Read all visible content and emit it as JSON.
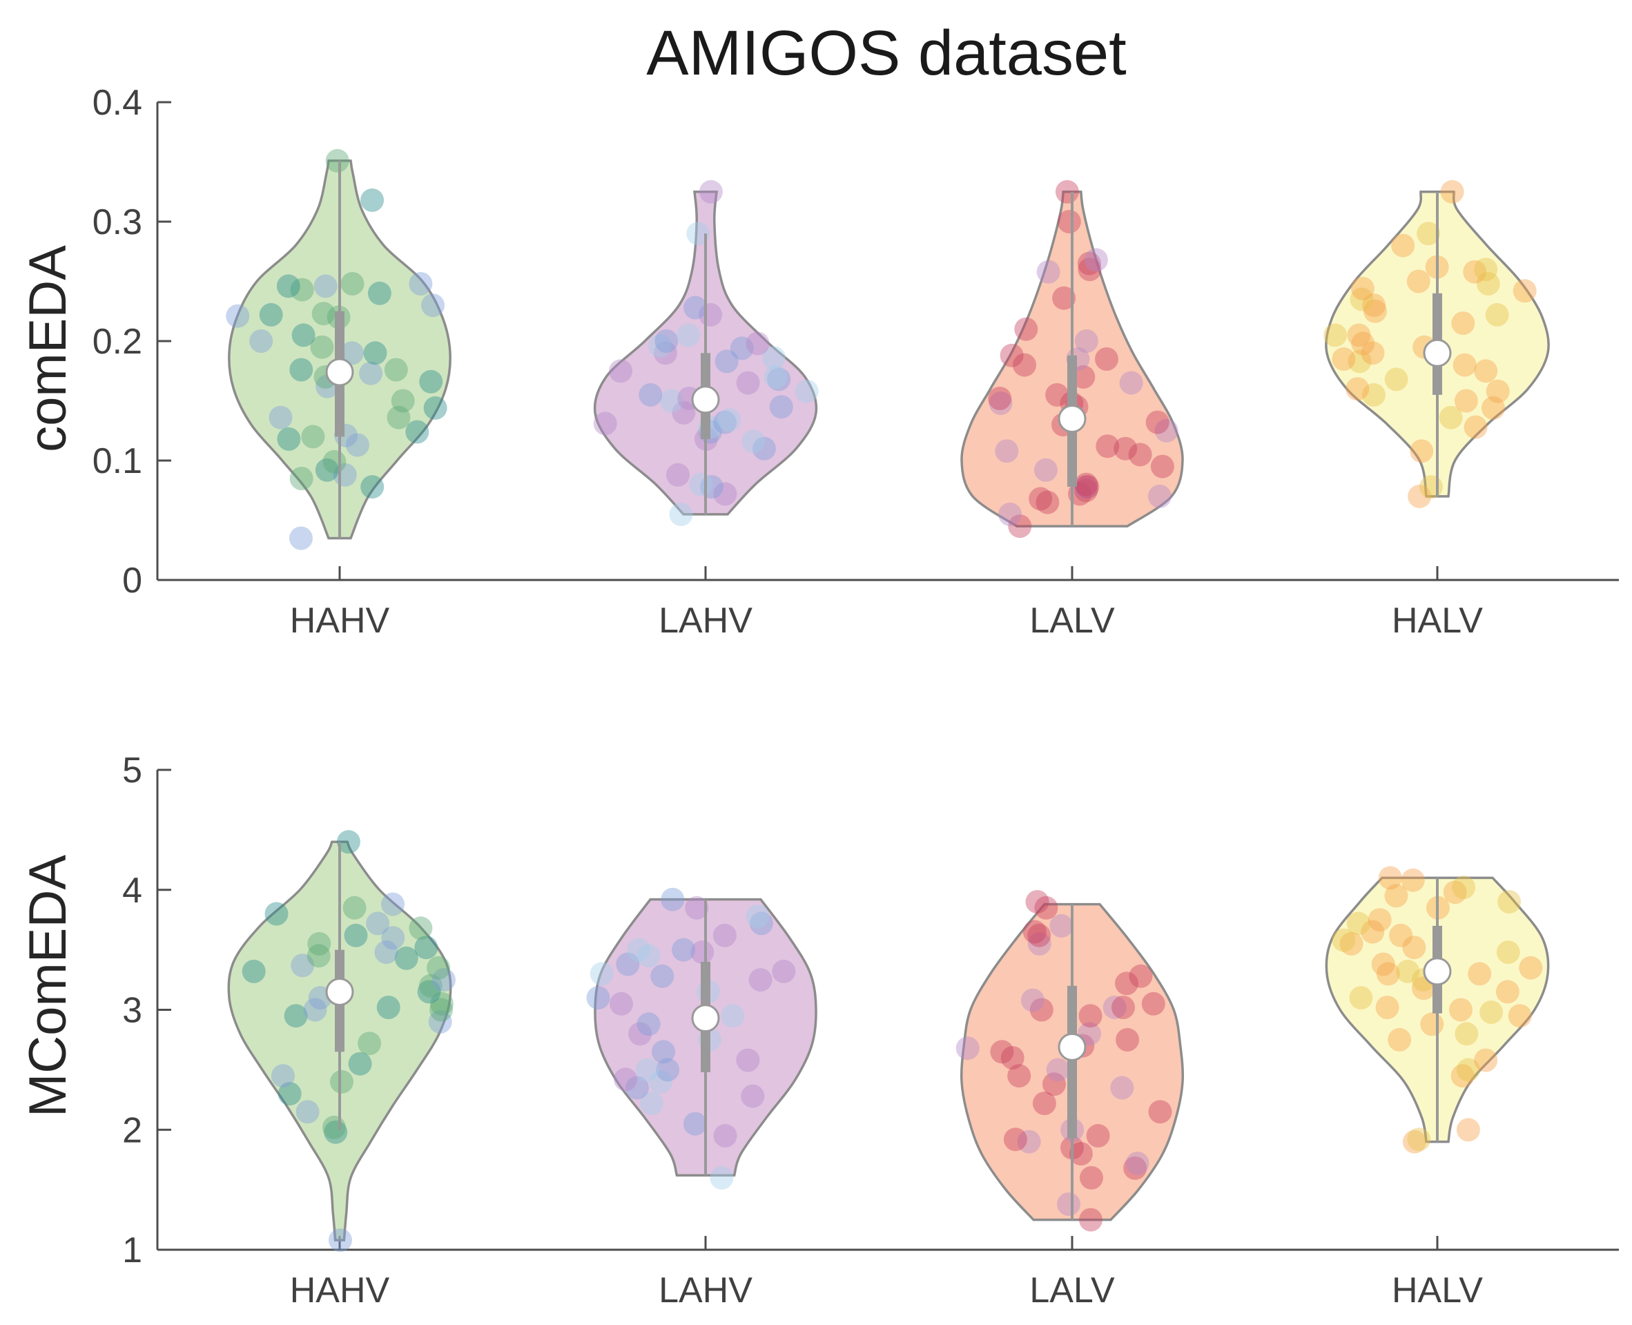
{
  "figure": {
    "title": "AMIGOS dataset"
  },
  "chart_data": [
    {
      "type": "violin",
      "ylabel": "comEDA",
      "xlabel": "",
      "categories": [
        "HAHV",
        "LAHV",
        "LALV",
        "HALV"
      ],
      "ylim": [
        0,
        0.4
      ],
      "yticks": [
        0,
        0.1,
        0.2,
        0.3,
        0.4
      ],
      "ytick_labels": [
        "0",
        "0.1",
        "0.2",
        "0.3",
        "0.4"
      ],
      "grid": false,
      "series": [
        {
          "category": "HAHV",
          "fill": "#a8d08d",
          "points": [
            0.035,
            0.078,
            0.085,
            0.088,
            0.092,
            0.099,
            0.113,
            0.118,
            0.12,
            0.121,
            0.124,
            0.136,
            0.136,
            0.144,
            0.15,
            0.162,
            0.166,
            0.17,
            0.173,
            0.176,
            0.176,
            0.19,
            0.19,
            0.195,
            0.2,
            0.205,
            0.22,
            0.221,
            0.222,
            0.223,
            0.23,
            0.24,
            0.243,
            0.246,
            0.246,
            0.248,
            0.248,
            0.318,
            0.351
          ],
          "median": 0.174,
          "q1": 0.12,
          "q3": 0.225,
          "whisker_low": 0.035,
          "whisker_high": 0.351,
          "density": [
            [
              0.035,
              0.1
            ],
            [
              0.07,
              0.26
            ],
            [
              0.1,
              0.52
            ],
            [
              0.13,
              0.8
            ],
            [
              0.16,
              0.96
            ],
            [
              0.19,
              1.0
            ],
            [
              0.22,
              0.93
            ],
            [
              0.25,
              0.75
            ],
            [
              0.28,
              0.4
            ],
            [
              0.31,
              0.2
            ],
            [
              0.34,
              0.12
            ],
            [
              0.351,
              0.1
            ]
          ]
        },
        {
          "category": "LAHV",
          "fill": "#c894c6",
          "points": [
            0.055,
            0.072,
            0.078,
            0.08,
            0.088,
            0.11,
            0.116,
            0.118,
            0.124,
            0.128,
            0.131,
            0.132,
            0.134,
            0.14,
            0.145,
            0.15,
            0.152,
            0.155,
            0.158,
            0.165,
            0.168,
            0.17,
            0.175,
            0.183,
            0.186,
            0.19,
            0.194,
            0.196,
            0.198,
            0.2,
            0.205,
            0.222,
            0.228,
            0.29,
            0.325
          ],
          "median": 0.151,
          "q1": 0.118,
          "q3": 0.19,
          "whisker_low": 0.055,
          "whisker_high": 0.29,
          "density": [
            [
              0.055,
              0.2
            ],
            [
              0.08,
              0.45
            ],
            [
              0.11,
              0.82
            ],
            [
              0.14,
              1.0
            ],
            [
              0.17,
              0.9
            ],
            [
              0.2,
              0.55
            ],
            [
              0.23,
              0.24
            ],
            [
              0.26,
              0.12
            ],
            [
              0.3,
              0.08
            ],
            [
              0.325,
              0.1
            ]
          ]
        },
        {
          "category": "LALV",
          "fill": "#f79b74",
          "points": [
            0.045,
            0.055,
            0.065,
            0.068,
            0.07,
            0.072,
            0.075,
            0.078,
            0.078,
            0.08,
            0.092,
            0.095,
            0.105,
            0.108,
            0.11,
            0.112,
            0.125,
            0.13,
            0.132,
            0.135,
            0.145,
            0.148,
            0.148,
            0.152,
            0.155,
            0.165,
            0.17,
            0.18,
            0.185,
            0.185,
            0.188,
            0.2,
            0.21,
            0.236,
            0.258,
            0.26,
            0.265,
            0.268,
            0.3,
            0.325
          ],
          "median": 0.135,
          "q1": 0.078,
          "q3": 0.188,
          "whisker_low": 0.045,
          "whisker_high": 0.325,
          "density": [
            [
              0.045,
              0.5
            ],
            [
              0.07,
              0.9
            ],
            [
              0.1,
              1.0
            ],
            [
              0.13,
              0.92
            ],
            [
              0.16,
              0.74
            ],
            [
              0.19,
              0.55
            ],
            [
              0.22,
              0.4
            ],
            [
              0.25,
              0.28
            ],
            [
              0.28,
              0.18
            ],
            [
              0.31,
              0.1
            ],
            [
              0.325,
              0.08
            ]
          ]
        },
        {
          "category": "HALV",
          "fill": "#f7f29b",
          "points": [
            0.07,
            0.078,
            0.108,
            0.128,
            0.136,
            0.144,
            0.15,
            0.155,
            0.158,
            0.16,
            0.168,
            0.175,
            0.18,
            0.183,
            0.185,
            0.19,
            0.19,
            0.195,
            0.198,
            0.205,
            0.205,
            0.215,
            0.222,
            0.225,
            0.23,
            0.235,
            0.242,
            0.244,
            0.248,
            0.25,
            0.258,
            0.26,
            0.262,
            0.28,
            0.29,
            0.325
          ],
          "median": 0.19,
          "q1": 0.155,
          "q3": 0.24,
          "whisker_low": 0.07,
          "whisker_high": 0.325,
          "density": [
            [
              0.07,
              0.1
            ],
            [
              0.1,
              0.16
            ],
            [
              0.13,
              0.45
            ],
            [
              0.16,
              0.82
            ],
            [
              0.19,
              1.0
            ],
            [
              0.22,
              0.95
            ],
            [
              0.25,
              0.75
            ],
            [
              0.28,
              0.45
            ],
            [
              0.31,
              0.18
            ],
            [
              0.325,
              0.15
            ]
          ]
        }
      ]
    },
    {
      "type": "violin",
      "ylabel": "MComEDA",
      "xlabel": "",
      "categories": [
        "HAHV",
        "LAHV",
        "LALV",
        "HALV"
      ],
      "ylim": [
        1,
        5
      ],
      "yticks": [
        1,
        2,
        3,
        4,
        5
      ],
      "ytick_labels": [
        "1",
        "2",
        "3",
        "4",
        "5"
      ],
      "grid": false,
      "series": [
        {
          "category": "HAHV",
          "fill": "#a8d08d",
          "points": [
            1.08,
            1.98,
            2.02,
            2.15,
            2.3,
            2.4,
            2.45,
            2.55,
            2.72,
            2.9,
            2.95,
            3.0,
            3.0,
            3.02,
            3.05,
            3.1,
            3.15,
            3.2,
            3.25,
            3.32,
            3.35,
            3.37,
            3.43,
            3.45,
            3.48,
            3.52,
            3.55,
            3.6,
            3.62,
            3.68,
            3.72,
            3.8,
            3.85,
            3.88,
            4.4
          ],
          "median": 3.15,
          "q1": 2.65,
          "q3": 3.5,
          "whisker_low": 2.0,
          "whisker_high": 4.4,
          "density": [
            [
              1.08,
              0.04
            ],
            [
              1.3,
              0.06
            ],
            [
              1.6,
              0.1
            ],
            [
              1.9,
              0.28
            ],
            [
              2.2,
              0.48
            ],
            [
              2.5,
              0.7
            ],
            [
              2.8,
              0.9
            ],
            [
              3.1,
              1.0
            ],
            [
              3.4,
              0.96
            ],
            [
              3.7,
              0.72
            ],
            [
              4.0,
              0.36
            ],
            [
              4.3,
              0.12
            ],
            [
              4.4,
              0.07
            ]
          ]
        },
        {
          "category": "LAHV",
          "fill": "#c894c6",
          "points": [
            1.6,
            1.95,
            2.05,
            2.22,
            2.28,
            2.35,
            2.4,
            2.42,
            2.5,
            2.5,
            2.58,
            2.65,
            2.75,
            2.8,
            2.88,
            2.95,
            3.05,
            3.1,
            3.15,
            3.25,
            3.28,
            3.3,
            3.32,
            3.38,
            3.45,
            3.48,
            3.5,
            3.5,
            3.62,
            3.72,
            3.78,
            3.85,
            3.92
          ],
          "median": 2.93,
          "q1": 2.48,
          "q3": 3.4,
          "whisker_low": 1.62,
          "whisker_high": 3.92,
          "density": [
            [
              1.62,
              0.26
            ],
            [
              1.8,
              0.32
            ],
            [
              2.1,
              0.55
            ],
            [
              2.4,
              0.8
            ],
            [
              2.7,
              0.96
            ],
            [
              3.0,
              1.0
            ],
            [
              3.3,
              0.95
            ],
            [
              3.6,
              0.76
            ],
            [
              3.92,
              0.5
            ]
          ]
        },
        {
          "category": "LALV",
          "fill": "#f79b74",
          "points": [
            1.25,
            1.38,
            1.6,
            1.68,
            1.72,
            1.8,
            1.85,
            1.9,
            1.92,
            1.95,
            2.0,
            2.15,
            2.22,
            2.35,
            2.38,
            2.45,
            2.5,
            2.6,
            2.65,
            2.68,
            2.7,
            2.75,
            2.8,
            2.95,
            3.0,
            3.02,
            3.02,
            3.05,
            3.08,
            3.22,
            3.28,
            3.55,
            3.62,
            3.65,
            3.7,
            3.85,
            3.9
          ],
          "median": 2.69,
          "q1": 1.93,
          "q3": 3.2,
          "whisker_low": 1.25,
          "whisker_high": 3.88,
          "density": [
            [
              1.25,
              0.35
            ],
            [
              1.5,
              0.6
            ],
            [
              1.8,
              0.82
            ],
            [
              2.1,
              0.94
            ],
            [
              2.4,
              1.0
            ],
            [
              2.7,
              0.98
            ],
            [
              3.0,
              0.92
            ],
            [
              3.3,
              0.74
            ],
            [
              3.6,
              0.5
            ],
            [
              3.88,
              0.25
            ]
          ]
        },
        {
          "category": "HALV",
          "fill": "#f7f29b",
          "points": [
            1.9,
            1.92,
            2.0,
            2.45,
            2.5,
            2.58,
            2.75,
            2.8,
            2.88,
            2.95,
            2.98,
            3.0,
            3.02,
            3.1,
            3.15,
            3.18,
            3.25,
            3.3,
            3.3,
            3.32,
            3.35,
            3.38,
            3.48,
            3.52,
            3.55,
            3.58,
            3.62,
            3.65,
            3.72,
            3.75,
            3.85,
            3.9,
            3.95,
            3.98,
            4.02,
            4.08,
            4.1
          ],
          "median": 3.32,
          "q1": 2.97,
          "q3": 3.7,
          "whisker_low": 1.9,
          "whisker_high": 4.1,
          "density": [
            [
              1.9,
              0.1
            ],
            [
              2.1,
              0.14
            ],
            [
              2.4,
              0.3
            ],
            [
              2.7,
              0.6
            ],
            [
              3.0,
              0.88
            ],
            [
              3.3,
              1.0
            ],
            [
              3.6,
              0.95
            ],
            [
              3.9,
              0.7
            ],
            [
              4.1,
              0.5
            ]
          ]
        }
      ]
    }
  ],
  "colors": {
    "axis": "#4d4d4d",
    "violin_edge": "#8c8c8c",
    "box": "#999999",
    "median_marker": "#ffffff",
    "point_palette": [
      "#7f9ed9",
      "#2b8c8c",
      "#5aa878",
      "#a5d0ea",
      "#b389c9",
      "#c7405f",
      "#f5a14a",
      "#e8c04a"
    ]
  }
}
